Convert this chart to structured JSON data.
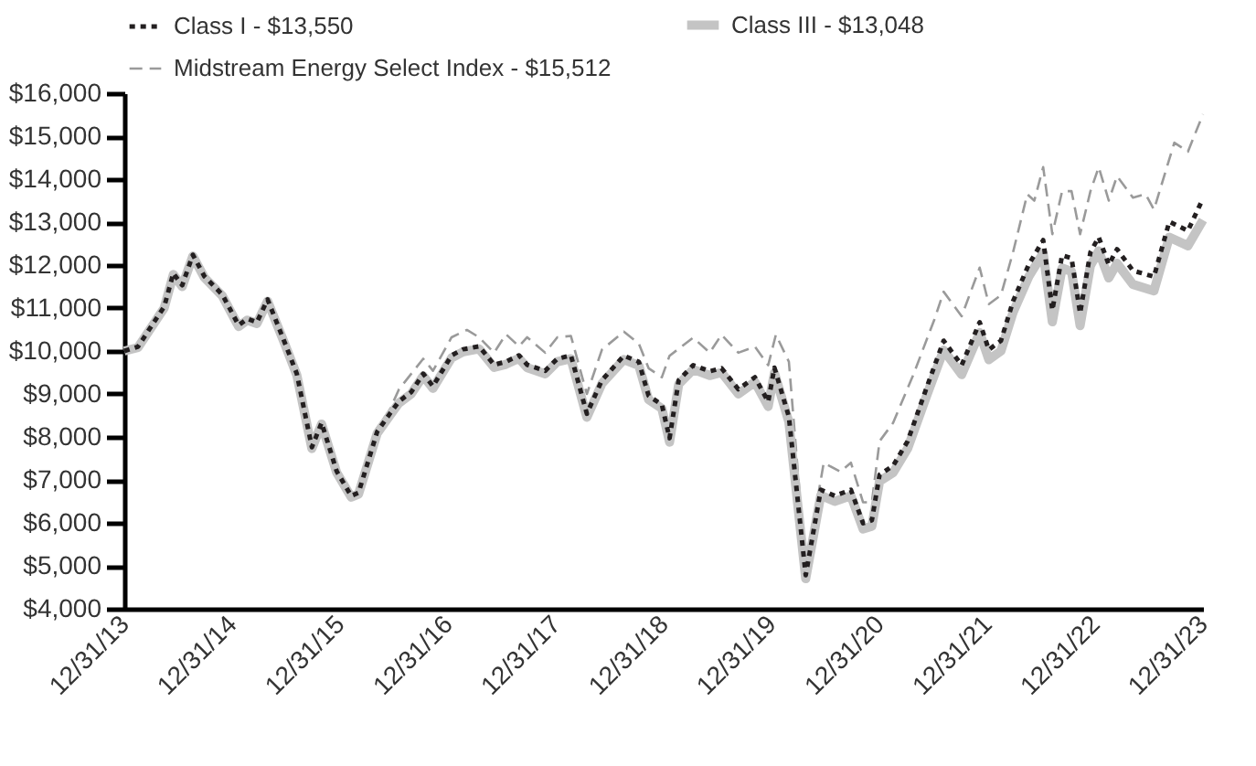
{
  "chart_data": {
    "type": "line",
    "legend": "top",
    "grid": false,
    "xlim": [
      "2013-12-31",
      "2023-12-31"
    ],
    "xticks": [
      {
        "value": "2013-12-31",
        "label": "12/31/13"
      },
      {
        "value": "2014-12-31",
        "label": "12/31/14"
      },
      {
        "value": "2015-12-31",
        "label": "12/31/15"
      },
      {
        "value": "2016-12-31",
        "label": "12/31/16"
      },
      {
        "value": "2017-12-31",
        "label": "12/31/17"
      },
      {
        "value": "2018-12-31",
        "label": "12/31/18"
      },
      {
        "value": "2019-12-31",
        "label": "12/31/19"
      },
      {
        "value": "2020-12-31",
        "label": "12/31/20"
      },
      {
        "value": "2021-12-31",
        "label": "12/31/21"
      },
      {
        "value": "2022-12-31",
        "label": "12/31/22"
      },
      {
        "value": "2023-12-31",
        "label": "12/31/23"
      }
    ],
    "ylim": [
      4000,
      16000
    ],
    "yticks": [
      {
        "value": 4000,
        "label": "$4,000"
      },
      {
        "value": 5000,
        "label": "$5,000"
      },
      {
        "value": 6000,
        "label": "$6,000"
      },
      {
        "value": 7000,
        "label": "$7,000"
      },
      {
        "value": 8000,
        "label": "$8,000"
      },
      {
        "value": 9000,
        "label": "$9,000"
      },
      {
        "value": 10000,
        "label": "$10,000"
      },
      {
        "value": 11000,
        "label": "$11,000"
      },
      {
        "value": 12000,
        "label": "$12,000"
      },
      {
        "value": 13000,
        "label": "$13,000"
      },
      {
        "value": 14000,
        "label": "$14,000"
      },
      {
        "value": 15000,
        "label": "$15,000"
      },
      {
        "value": 16000,
        "label": "$16,000"
      }
    ],
    "series": [
      {
        "name": "Class I - $13,550",
        "color": "#231f20",
        "line_style": "dotted",
        "x": [
          "2013-12-31",
          "2014-02-15",
          "2014-05-15",
          "2014-06-15",
          "2014-07-15",
          "2014-08-20",
          "2014-09-28",
          "2014-11-28",
          "2015-01-22",
          "2015-02-20",
          "2015-03-25",
          "2015-04-30",
          "2015-06-28",
          "2015-08-07",
          "2015-09-27",
          "2015-10-30",
          "2015-12-20",
          "2016-02-07",
          "2016-03-03",
          "2016-05-05",
          "2016-06-18",
          "2016-07-18",
          "2016-08-28",
          "2016-10-08",
          "2016-11-10",
          "2017-01-12",
          "2017-02-20",
          "2017-04-15",
          "2017-06-05",
          "2017-07-15",
          "2017-08-28",
          "2017-09-25",
          "2017-11-25",
          "2018-01-05",
          "2018-02-20",
          "2018-04-15",
          "2018-06-05",
          "2018-08-18",
          "2018-10-08",
          "2018-11-10",
          "2018-12-25",
          "2019-01-20",
          "2019-02-20",
          "2019-04-10",
          "2019-06-05",
          "2019-07-15",
          "2019-09-10",
          "2019-11-05",
          "2019-12-20",
          "2020-01-10",
          "2020-02-28",
          "2020-04-25",
          "2020-06-15",
          "2020-08-01",
          "2020-09-25",
          "2020-11-05",
          "2020-12-05",
          "2020-12-31",
          "2021-02-15",
          "2021-04-05",
          "2021-06-10",
          "2021-08-05",
          "2021-10-05",
          "2021-12-05",
          "2022-01-05",
          "2022-02-15",
          "2022-03-28",
          "2022-05-20",
          "2022-07-08",
          "2022-08-08",
          "2022-09-10",
          "2022-10-12",
          "2022-11-10",
          "2022-12-15",
          "2023-01-12",
          "2023-02-15",
          "2023-03-15",
          "2023-05-08",
          "2023-07-18",
          "2023-09-08",
          "2023-11-10",
          "2023-12-31"
        ],
        "values": [
          10000,
          10100,
          11030,
          11810,
          11530,
          12240,
          11740,
          11310,
          10600,
          10750,
          10670,
          11200,
          10180,
          9470,
          7760,
          8330,
          7200,
          6630,
          6700,
          8120,
          8550,
          8830,
          9040,
          9470,
          9180,
          9900,
          10040,
          10110,
          9680,
          9750,
          9900,
          9680,
          9540,
          9820,
          9900,
          8540,
          9320,
          9890,
          9750,
          8960,
          8750,
          7970,
          9320,
          9670,
          9530,
          9600,
          9110,
          9390,
          8820,
          9610,
          8470,
          4780,
          6770,
          6630,
          6770,
          5990,
          6060,
          7120,
          7330,
          7900,
          9180,
          10240,
          9670,
          10670,
          10030,
          10240,
          11160,
          12010,
          12580,
          10950,
          12230,
          12160,
          10880,
          12300,
          12650,
          12010,
          12370,
          11870,
          11730,
          13010,
          12800,
          13550
        ]
      },
      {
        "name": "Class III - $13,048",
        "color": "#c4c4c4",
        "line_style": "solid",
        "x": [
          "2013-12-31",
          "2014-02-15",
          "2014-05-15",
          "2014-06-15",
          "2014-07-15",
          "2014-08-20",
          "2014-09-28",
          "2014-11-28",
          "2015-01-22",
          "2015-02-20",
          "2015-03-25",
          "2015-04-30",
          "2015-06-28",
          "2015-08-07",
          "2015-09-27",
          "2015-10-30",
          "2015-12-20",
          "2016-02-07",
          "2016-03-03",
          "2016-05-05",
          "2016-06-18",
          "2016-07-18",
          "2016-08-28",
          "2016-10-08",
          "2016-11-10",
          "2017-01-12",
          "2017-02-20",
          "2017-04-15",
          "2017-06-05",
          "2017-07-15",
          "2017-08-28",
          "2017-09-25",
          "2017-11-25",
          "2018-01-05",
          "2018-02-20",
          "2018-04-15",
          "2018-06-05",
          "2018-08-18",
          "2018-10-08",
          "2018-11-10",
          "2018-12-25",
          "2019-01-20",
          "2019-02-20",
          "2019-04-10",
          "2019-06-05",
          "2019-07-15",
          "2019-09-10",
          "2019-11-05",
          "2019-12-20",
          "2020-01-10",
          "2020-02-28",
          "2020-04-25",
          "2020-06-15",
          "2020-08-01",
          "2020-09-25",
          "2020-11-05",
          "2020-12-05",
          "2020-12-31",
          "2021-02-15",
          "2021-04-05",
          "2021-06-10",
          "2021-08-05",
          "2021-10-05",
          "2021-12-05",
          "2022-01-05",
          "2022-02-15",
          "2022-03-28",
          "2022-05-20",
          "2022-07-08",
          "2022-08-08",
          "2022-09-10",
          "2022-10-12",
          "2022-11-10",
          "2022-12-15",
          "2023-01-12",
          "2023-02-15",
          "2023-03-15",
          "2023-05-08",
          "2023-07-18",
          "2023-09-08",
          "2023-11-10",
          "2023-12-31"
        ],
        "values": [
          10000,
          10080,
          11000,
          11780,
          11500,
          12210,
          11710,
          11280,
          10570,
          10720,
          10640,
          11160,
          10150,
          9440,
          7730,
          8300,
          7170,
          6600,
          6670,
          8080,
          8510,
          8790,
          9000,
          9420,
          9130,
          9840,
          9980,
          10050,
          9620,
          9690,
          9830,
          9610,
          9470,
          9750,
          9820,
          8460,
          9240,
          9800,
          9660,
          8870,
          8660,
          7880,
          9230,
          9570,
          9430,
          9500,
          9000,
          9280,
          8710,
          9490,
          8350,
          4700,
          6640,
          6500,
          6630,
          5860,
          5920,
          6970,
          7170,
          7730,
          8990,
          10020,
          9450,
          10430,
          9800,
          10000,
          10900,
          11730,
          12280,
          10680,
          11930,
          11850,
          10590,
          11990,
          12330,
          11700,
          12040,
          11550,
          11400,
          12650,
          12450,
          13048
        ]
      },
      {
        "name": "Midstream Energy Select Index - $15,512",
        "color": "#9a9a9a",
        "line_style": "dashed",
        "x": [
          "2013-12-31",
          "2014-02-15",
          "2014-05-15",
          "2014-06-15",
          "2014-07-15",
          "2014-08-20",
          "2014-09-28",
          "2014-11-28",
          "2015-01-22",
          "2015-02-20",
          "2015-03-25",
          "2015-04-30",
          "2015-06-28",
          "2015-08-07",
          "2015-09-27",
          "2015-10-30",
          "2015-12-20",
          "2016-02-07",
          "2016-03-03",
          "2016-05-05",
          "2016-06-18",
          "2016-07-18",
          "2016-10-08",
          "2016-11-10",
          "2017-01-12",
          "2017-03-05",
          "2017-04-15",
          "2017-06-05",
          "2017-07-15",
          "2017-08-28",
          "2017-09-25",
          "2017-11-25",
          "2018-01-05",
          "2018-02-20",
          "2018-04-15",
          "2018-06-05",
          "2018-08-18",
          "2018-10-08",
          "2018-11-10",
          "2018-12-25",
          "2019-01-20",
          "2019-04-10",
          "2019-06-05",
          "2019-07-15",
          "2019-09-10",
          "2019-11-05",
          "2019-12-20",
          "2020-01-15",
          "2020-02-28",
          "2020-04-25",
          "2020-06-25",
          "2020-08-20",
          "2020-09-25",
          "2020-11-05",
          "2020-12-05",
          "2020-12-31",
          "2021-02-15",
          "2021-04-25",
          "2021-07-05",
          "2021-08-05",
          "2021-10-05",
          "2021-12-05",
          "2022-01-05",
          "2022-02-15",
          "2022-03-28",
          "2022-05-15",
          "2022-06-08",
          "2022-07-08",
          "2022-08-08",
          "2022-09-10",
          "2022-10-12",
          "2022-11-10",
          "2022-12-15",
          "2023-01-12",
          "2023-02-15",
          "2023-03-15",
          "2023-05-08",
          "2023-06-20",
          "2023-07-18",
          "2023-09-25",
          "2023-11-10",
          "2023-12-31"
        ],
        "values": [
          10000,
          10120,
          11060,
          11850,
          11560,
          12260,
          11780,
          11360,
          10650,
          10800,
          10700,
          11250,
          10220,
          9500,
          7800,
          8380,
          7230,
          6670,
          6740,
          8200,
          8650,
          9110,
          9820,
          9540,
          10320,
          10490,
          10320,
          9960,
          10390,
          10110,
          10320,
          9960,
          10320,
          10350,
          9000,
          10030,
          10450,
          10170,
          9600,
          9390,
          9890,
          10310,
          9960,
          10380,
          9960,
          10100,
          9670,
          10380,
          9750,
          4950,
          7400,
          7190,
          7400,
          6480,
          6480,
          7900,
          8330,
          9460,
          10740,
          11380,
          10810,
          11940,
          11090,
          11300,
          12300,
          13650,
          13500,
          14280,
          12720,
          13720,
          13720,
          12720,
          13720,
          14280,
          13500,
          14070,
          13570,
          13650,
          13290,
          14850,
          14640,
          15512
        ]
      }
    ]
  }
}
